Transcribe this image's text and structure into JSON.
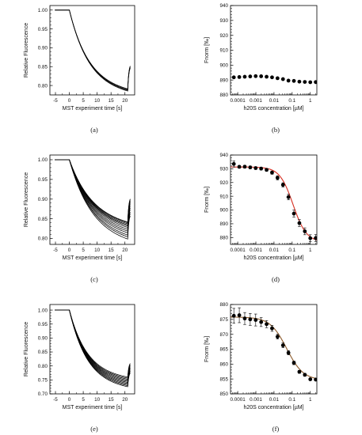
{
  "figure": {
    "panels": [
      {
        "label": "(a)"
      },
      {
        "label": "(b)"
      },
      {
        "label": "(c)"
      },
      {
        "label": "(d)"
      },
      {
        "label": "(e)"
      },
      {
        "label": "(f)"
      }
    ]
  },
  "chart_data": [
    {
      "panel": "(a)",
      "type": "line",
      "xlabel": "MST experiment time [s]",
      "ylabel": "Relative Fluorescence",
      "xlim": [
        -7,
        23.5
      ],
      "ylim": [
        0.775,
        1.012
      ],
      "xticks": [
        "-5",
        "0",
        "5",
        "10",
        "15",
        "20"
      ],
      "yticks": [
        "0.80",
        "0.85",
        "0.90",
        "0.95",
        "1.00"
      ],
      "grid": false,
      "trace_model": {
        "pre_value": 1.0,
        "jump_time": 0.0,
        "end_time": 21.0,
        "recovery_end_time": 22.0,
        "recovery_rise": 0.062
      },
      "series": [
        {
          "plateau": 0.786,
          "decay_rate": 0.14
        },
        {
          "plateau": 0.788,
          "decay_rate": 0.14
        },
        {
          "plateau": 0.79,
          "decay_rate": 0.14
        },
        {
          "plateau": 0.792,
          "decay_rate": 0.14
        }
      ]
    },
    {
      "panel": "(b)",
      "type": "scatter",
      "xlabel": "h20S concentration [µM]",
      "ylabel": "Fnorm [‰]",
      "xscale": "log",
      "xlim": [
        4e-05,
        2.3
      ],
      "ylim": [
        880,
        940
      ],
      "xticks": [
        "0.0001",
        "0.001",
        "0.01",
        "0.1",
        "1"
      ],
      "yticks": [
        "880",
        "890",
        "900",
        "910",
        "920",
        "930",
        "940"
      ],
      "grid": false,
      "x": [
        6.1e-05,
        0.000122,
        0.000244,
        0.000488,
        0.000977,
        0.00195,
        0.0039,
        0.0078,
        0.0156,
        0.0313,
        0.0625,
        0.125,
        0.25,
        0.5,
        1.0,
        2.0
      ],
      "y": [
        891.8,
        892.0,
        892.2,
        892.4,
        892.6,
        892.5,
        892.2,
        891.8,
        891.2,
        890.6,
        889.6,
        889.4,
        888.9,
        888.7,
        888.5,
        888.6
      ]
    },
    {
      "panel": "(c)",
      "type": "line",
      "xlabel": "MST experiment time [s]",
      "ylabel": "Relative Fluorescence",
      "xlim": [
        -7,
        23.5
      ],
      "ylim": [
        0.785,
        1.012
      ],
      "xticks": [
        "-5",
        "0",
        "5",
        "10",
        "15",
        "20"
      ],
      "yticks": [
        "0.80",
        "0.85",
        "0.90",
        "0.95",
        "1.00"
      ],
      "grid": false,
      "trace_model": {
        "pre_value": 1.0,
        "jump_time": 0.0,
        "end_time": 21.0,
        "recovery_end_time": 22.0,
        "recovery_rise": 0.06
      },
      "series": [
        {
          "plateau": 0.794,
          "decay_rate": 0.12
        },
        {
          "plateau": 0.8,
          "decay_rate": 0.12
        },
        {
          "plateau": 0.805,
          "decay_rate": 0.12
        },
        {
          "plateau": 0.811,
          "decay_rate": 0.12
        },
        {
          "plateau": 0.816,
          "decay_rate": 0.12
        },
        {
          "plateau": 0.821,
          "decay_rate": 0.12
        },
        {
          "plateau": 0.826,
          "decay_rate": 0.12
        },
        {
          "plateau": 0.83,
          "decay_rate": 0.12
        },
        {
          "plateau": 0.833,
          "decay_rate": 0.12
        },
        {
          "plateau": 0.836,
          "decay_rate": 0.12
        },
        {
          "plateau": 0.839,
          "decay_rate": 0.12
        },
        {
          "plateau": 0.841,
          "decay_rate": 0.12
        }
      ]
    },
    {
      "panel": "(d)",
      "type": "scatter",
      "xlabel": "h20S concentration [µM]",
      "ylabel": "Fnorm [‰]",
      "xscale": "log",
      "xlim": [
        4e-05,
        2.3
      ],
      "ylim": [
        875,
        940
      ],
      "xticks": [
        "0.0001",
        "0.001",
        "0.01",
        "0.1",
        "1"
      ],
      "yticks": [
        "880",
        "890",
        "900",
        "910",
        "920",
        "930",
        "940"
      ],
      "grid": false,
      "x": [
        6.1e-05,
        0.000122,
        0.000244,
        0.000488,
        0.000977,
        0.00195,
        0.0039,
        0.0078,
        0.0156,
        0.0313,
        0.0625,
        0.125,
        0.25,
        0.5,
        1.0,
        2.0
      ],
      "y": [
        933.5,
        931.4,
        931.5,
        931.0,
        930.5,
        930.1,
        929.2,
        927.2,
        923.4,
        918.3,
        909.4,
        897.4,
        890.5,
        884.5,
        879.5,
        879.6
      ],
      "errors": [
        2.2,
        1.0,
        1.0,
        1.0,
        1.0,
        1.0,
        1.0,
        1.2,
        1.5,
        1.5,
        2.0,
        2.5,
        2.5,
        2.5,
        2.5,
        2.5
      ],
      "fit": {
        "color": "#d62d20",
        "bottom": 876.7,
        "top": 931.3,
        "ec50": 0.112,
        "hill": 1.18
      }
    },
    {
      "panel": "(e)",
      "type": "line",
      "xlabel": "MST experiment time [s]",
      "ylabel": "Relative Fluorescence",
      "xlim": [
        -7,
        23.5
      ],
      "ylim": [
        0.7,
        1.02
      ],
      "xticks": [
        "-5",
        "0",
        "5",
        "10",
        "15",
        "20"
      ],
      "yticks": [
        "0.70",
        "0.75",
        "0.80",
        "0.85",
        "0.90",
        "0.95",
        "1.00"
      ],
      "grid": false,
      "trace_model": {
        "pre_value": 1.0,
        "jump_time": 0.0,
        "end_time": 21.0,
        "recovery_end_time": 22.0,
        "recovery_rise": 0.05
      },
      "series": [
        {
          "plateau": 0.727,
          "decay_rate": 0.155
        },
        {
          "plateau": 0.731,
          "decay_rate": 0.155
        },
        {
          "plateau": 0.735,
          "decay_rate": 0.155
        },
        {
          "plateau": 0.739,
          "decay_rate": 0.155
        },
        {
          "plateau": 0.743,
          "decay_rate": 0.155
        },
        {
          "plateau": 0.747,
          "decay_rate": 0.155
        },
        {
          "plateau": 0.751,
          "decay_rate": 0.155
        },
        {
          "plateau": 0.755,
          "decay_rate": 0.155
        },
        {
          "plateau": 0.759,
          "decay_rate": 0.155
        },
        {
          "plateau": 0.763,
          "decay_rate": 0.155
        }
      ]
    },
    {
      "panel": "(f)",
      "type": "scatter",
      "xlabel": "h20S concentration [µM]",
      "ylabel": "Fnorm [‰]",
      "xscale": "log",
      "xlim": [
        4e-05,
        2.3
      ],
      "ylim": [
        850,
        880
      ],
      "xticks": [
        "0.0001",
        "0.001",
        "0.01",
        "0.1",
        "1"
      ],
      "yticks": [
        "850",
        "855",
        "860",
        "865",
        "870",
        "875",
        "880"
      ],
      "grid": false,
      "x": [
        6.1e-05,
        0.000122,
        0.000244,
        0.000488,
        0.000977,
        0.00195,
        0.0039,
        0.0078,
        0.0156,
        0.0313,
        0.0625,
        0.125,
        0.25,
        0.5,
        1.0,
        2.0
      ],
      "y": [
        876.2,
        876.4,
        875.3,
        875.0,
        874.8,
        874.1,
        873.4,
        872.0,
        869.2,
        866.3,
        863.8,
        860.4,
        857.4,
        856.4,
        854.9,
        854.8
      ],
      "errors": [
        2.5,
        2.5,
        2.0,
        2.0,
        2.0,
        1.5,
        1.2,
        1.0,
        0.8,
        0.8,
        0.7,
        0.6,
        0.5,
        0.5,
        0.4,
        0.4
      ],
      "fit": {
        "color": "#8b5a2b",
        "bottom": 854.6,
        "top": 875.8,
        "ec50": 0.05,
        "hill": 0.95
      }
    }
  ]
}
